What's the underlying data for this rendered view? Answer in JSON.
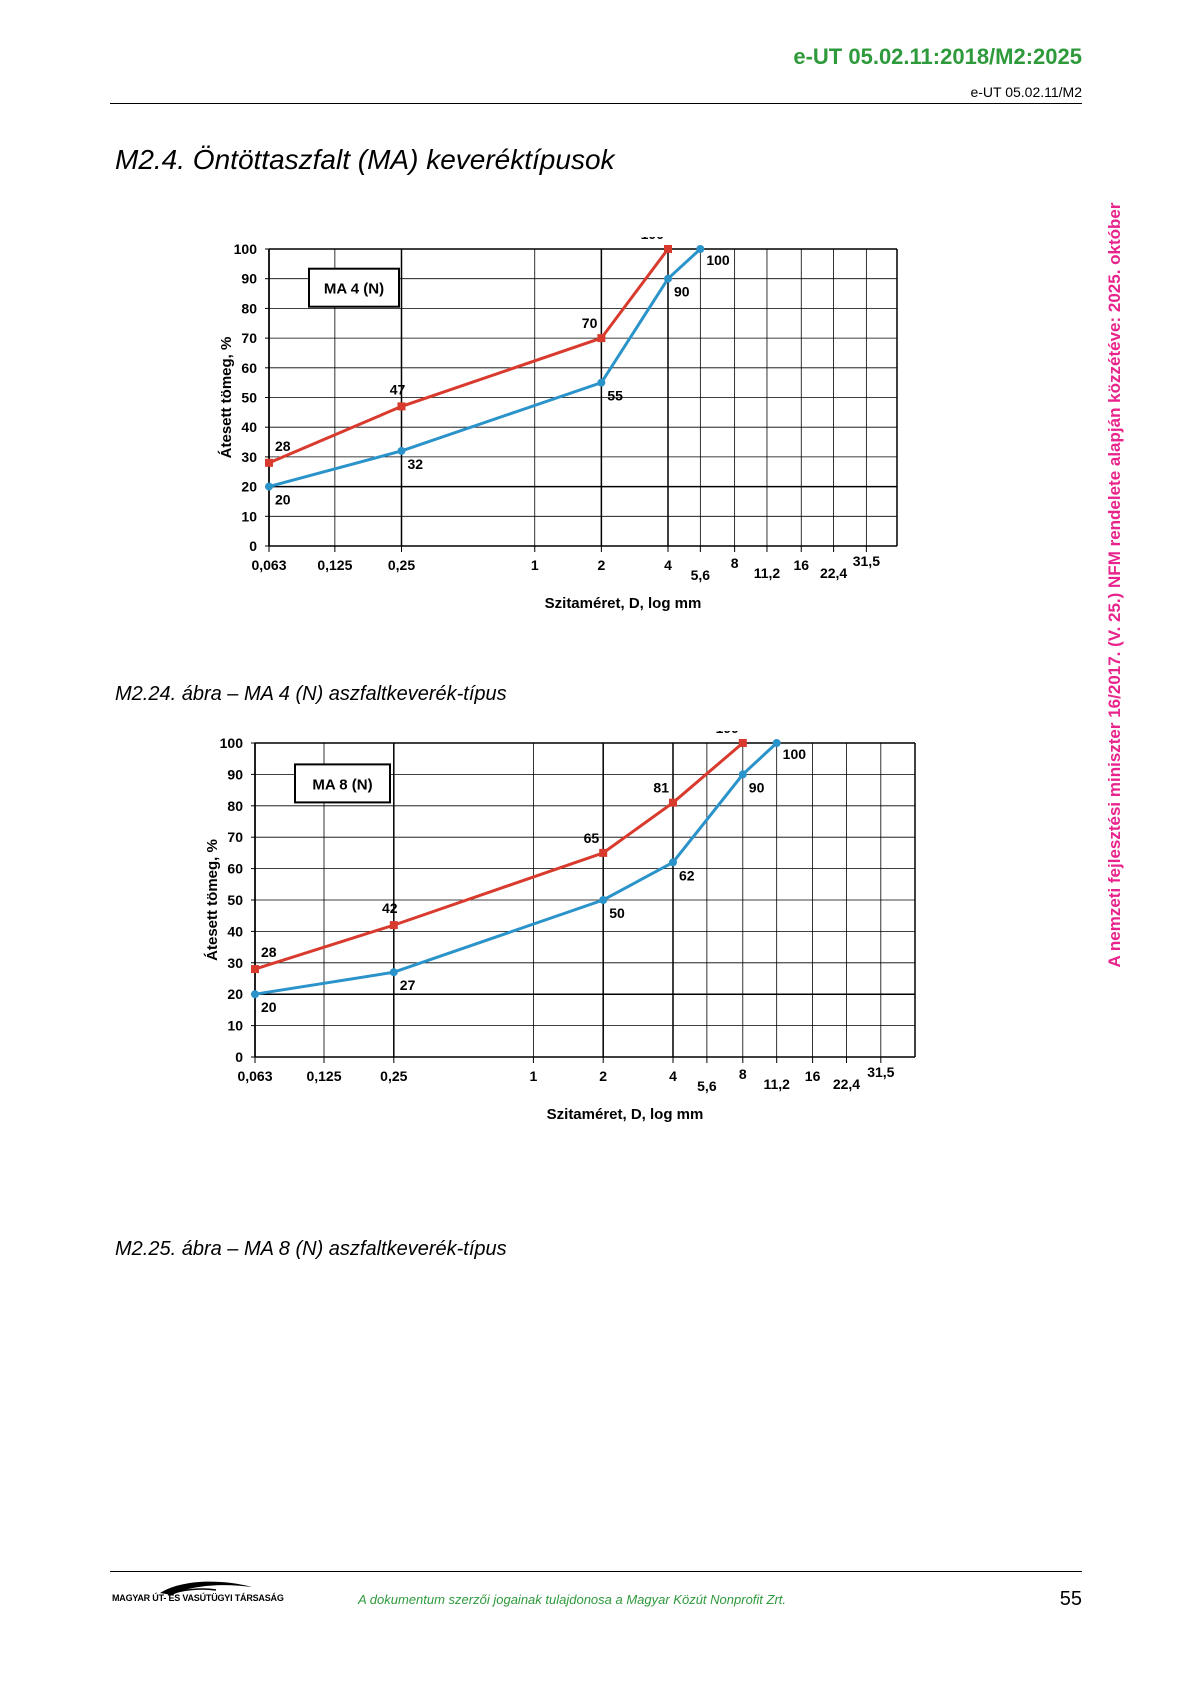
{
  "header": {
    "code": "e-UT 05.02.11:2018/M2:2025",
    "sub": "e-UT 05.02.11/M2"
  },
  "section_title": "M2.4.  Öntöttaszfalt (MA) keveréktípusok",
  "side_note": "A nemzeti fejlesztési miniszter 16/2017. (V. 25.) NFM rendelete alapján közzétéve: 2025. október",
  "charts": [
    {
      "caption": "M2.24. ábra – MA 4 (N) aszfaltkeverék-típus"
    },
    {
      "caption": "M2.25. ábra – MA 8 (N) aszfaltkeverék-típus"
    }
  ],
  "chart_data": [
    {
      "type": "line",
      "title": "MA 4 (N)",
      "xlabel": "Szitaméret, D, log mm",
      "ylabel": "Átesett tömeg, %",
      "xscale": "log",
      "x_ticks": [
        "0,063",
        "0,125",
        "0,25",
        "1",
        "2",
        "4",
        "5,6",
        "8",
        "11,2",
        "16",
        "22,4",
        "31,5"
      ],
      "ylim": [
        0,
        100
      ],
      "y_ticks": [
        0,
        10,
        20,
        30,
        40,
        50,
        60,
        70,
        80,
        90,
        100
      ],
      "colors": {
        "upper": "#d93a2e",
        "lower": "#2a93c9"
      },
      "series": [
        {
          "x": [
            0.063,
            0.25,
            2,
            4
          ],
          "values": [
            28,
            47,
            70,
            100
          ],
          "labels": [
            "28",
            "47",
            "70",
            "100"
          ]
        },
        {
          "x": [
            0.063,
            0.25,
            2,
            4,
            5.6
          ],
          "values": [
            20,
            32,
            55,
            90,
            100
          ],
          "labels": [
            "20",
            "32",
            "55",
            "90",
            "100"
          ]
        }
      ]
    },
    {
      "type": "line",
      "title": "MA 8 (N)",
      "xlabel": "Szitaméret, D, log mm",
      "ylabel": "Átesett tömeg, %",
      "xscale": "log",
      "x_ticks": [
        "0,063",
        "0,125",
        "0,25",
        "1",
        "2",
        "4",
        "5,6",
        "8",
        "11,2",
        "16",
        "22,4",
        "31,5"
      ],
      "ylim": [
        0,
        100
      ],
      "y_ticks": [
        0,
        10,
        20,
        30,
        40,
        50,
        60,
        70,
        80,
        90,
        100
      ],
      "colors": {
        "upper": "#d93a2e",
        "lower": "#2a93c9"
      },
      "series": [
        {
          "x": [
            0.063,
            0.25,
            2,
            4,
            8
          ],
          "values": [
            28,
            42,
            65,
            81,
            100
          ],
          "labels": [
            "28",
            "42",
            "65",
            "81",
            "100"
          ]
        },
        {
          "x": [
            0.063,
            0.25,
            2,
            4,
            8,
            11.2
          ],
          "values": [
            20,
            27,
            50,
            62,
            90,
            100
          ],
          "labels": [
            "20",
            "27",
            "50",
            "62",
            "90",
            "100"
          ]
        }
      ]
    }
  ],
  "footer": {
    "logo_text": "MAGYAR ÚT- ÉS VASÚTÜGYI TÁRSASÁG",
    "copyright": "A dokumentum szerzői jogainak tulajdonosa a Magyar Közút Nonprofit Zrt.",
    "page": "55"
  }
}
